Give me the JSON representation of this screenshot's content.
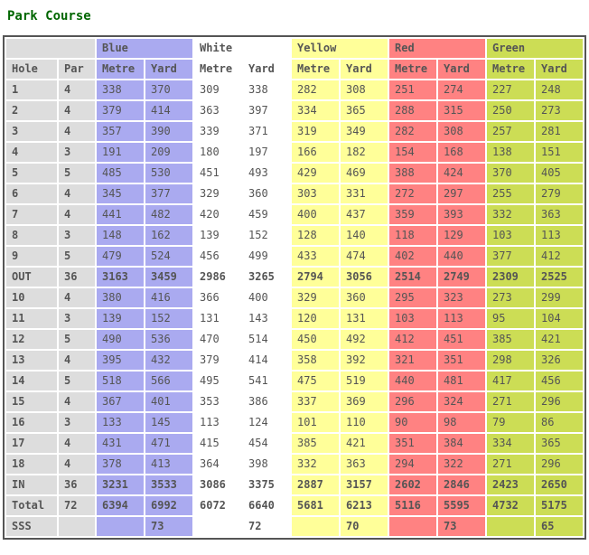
{
  "title": "Park Course",
  "colors": {
    "blue": "#AAAAF0",
    "white": "#FFFFFF",
    "yellow": "#FFFF99",
    "red": "#FF8282",
    "green": "#CCDD55",
    "gray": "#DDDDDD",
    "text": "#555555",
    "title": "#006600",
    "border": "#555555"
  },
  "table": {
    "corner_label": "",
    "col_headers": {
      "hole": "Hole",
      "par": "Par",
      "metre": "Metre",
      "yard": "Yard"
    },
    "tees": [
      {
        "key": "blue",
        "name": "Blue"
      },
      {
        "key": "white",
        "name": "White"
      },
      {
        "key": "yellow",
        "name": "Yellow"
      },
      {
        "key": "red",
        "name": "Red"
      },
      {
        "key": "green",
        "name": "Green"
      }
    ],
    "rows": [
      {
        "hole": "1",
        "par": "4",
        "bold": false,
        "values": [
          [
            338,
            370
          ],
          [
            309,
            338
          ],
          [
            282,
            308
          ],
          [
            251,
            274
          ],
          [
            227,
            248
          ]
        ]
      },
      {
        "hole": "2",
        "par": "4",
        "bold": false,
        "values": [
          [
            379,
            414
          ],
          [
            363,
            397
          ],
          [
            334,
            365
          ],
          [
            288,
            315
          ],
          [
            250,
            273
          ]
        ]
      },
      {
        "hole": "3",
        "par": "4",
        "bold": false,
        "values": [
          [
            357,
            390
          ],
          [
            339,
            371
          ],
          [
            319,
            349
          ],
          [
            282,
            308
          ],
          [
            257,
            281
          ]
        ]
      },
      {
        "hole": "4",
        "par": "3",
        "bold": false,
        "values": [
          [
            191,
            209
          ],
          [
            180,
            197
          ],
          [
            166,
            182
          ],
          [
            154,
            168
          ],
          [
            138,
            151
          ]
        ]
      },
      {
        "hole": "5",
        "par": "5",
        "bold": false,
        "values": [
          [
            485,
            530
          ],
          [
            451,
            493
          ],
          [
            429,
            469
          ],
          [
            388,
            424
          ],
          [
            370,
            405
          ]
        ]
      },
      {
        "hole": "6",
        "par": "4",
        "bold": false,
        "values": [
          [
            345,
            377
          ],
          [
            329,
            360
          ],
          [
            303,
            331
          ],
          [
            272,
            297
          ],
          [
            255,
            279
          ]
        ]
      },
      {
        "hole": "7",
        "par": "4",
        "bold": false,
        "values": [
          [
            441,
            482
          ],
          [
            420,
            459
          ],
          [
            400,
            437
          ],
          [
            359,
            393
          ],
          [
            332,
            363
          ]
        ]
      },
      {
        "hole": "8",
        "par": "3",
        "bold": false,
        "values": [
          [
            148,
            162
          ],
          [
            139,
            152
          ],
          [
            128,
            140
          ],
          [
            118,
            129
          ],
          [
            103,
            113
          ]
        ]
      },
      {
        "hole": "9",
        "par": "5",
        "bold": false,
        "values": [
          [
            479,
            524
          ],
          [
            456,
            499
          ],
          [
            433,
            474
          ],
          [
            402,
            440
          ],
          [
            377,
            412
          ]
        ]
      },
      {
        "hole": "OUT",
        "par": "36",
        "bold": true,
        "values": [
          [
            3163,
            3459
          ],
          [
            2986,
            3265
          ],
          [
            2794,
            3056
          ],
          [
            2514,
            2749
          ],
          [
            2309,
            2525
          ]
        ]
      },
      {
        "hole": "10",
        "par": "4",
        "bold": false,
        "values": [
          [
            380,
            416
          ],
          [
            366,
            400
          ],
          [
            329,
            360
          ],
          [
            295,
            323
          ],
          [
            273,
            299
          ]
        ]
      },
      {
        "hole": "11",
        "par": "3",
        "bold": false,
        "values": [
          [
            139,
            152
          ],
          [
            131,
            143
          ],
          [
            120,
            131
          ],
          [
            103,
            113
          ],
          [
            95,
            104
          ]
        ]
      },
      {
        "hole": "12",
        "par": "5",
        "bold": false,
        "values": [
          [
            490,
            536
          ],
          [
            470,
            514
          ],
          [
            450,
            492
          ],
          [
            412,
            451
          ],
          [
            385,
            421
          ]
        ]
      },
      {
        "hole": "13",
        "par": "4",
        "bold": false,
        "values": [
          [
            395,
            432
          ],
          [
            379,
            414
          ],
          [
            358,
            392
          ],
          [
            321,
            351
          ],
          [
            298,
            326
          ]
        ]
      },
      {
        "hole": "14",
        "par": "5",
        "bold": false,
        "values": [
          [
            518,
            566
          ],
          [
            495,
            541
          ],
          [
            475,
            519
          ],
          [
            440,
            481
          ],
          [
            417,
            456
          ]
        ]
      },
      {
        "hole": "15",
        "par": "4",
        "bold": false,
        "values": [
          [
            367,
            401
          ],
          [
            353,
            386
          ],
          [
            337,
            369
          ],
          [
            296,
            324
          ],
          [
            271,
            296
          ]
        ]
      },
      {
        "hole": "16",
        "par": "3",
        "bold": false,
        "values": [
          [
            133,
            145
          ],
          [
            113,
            124
          ],
          [
            101,
            110
          ],
          [
            90,
            98
          ],
          [
            79,
            86
          ]
        ]
      },
      {
        "hole": "17",
        "par": "4",
        "bold": false,
        "values": [
          [
            431,
            471
          ],
          [
            415,
            454
          ],
          [
            385,
            421
          ],
          [
            351,
            384
          ],
          [
            334,
            365
          ]
        ]
      },
      {
        "hole": "18",
        "par": "4",
        "bold": false,
        "values": [
          [
            378,
            413
          ],
          [
            364,
            398
          ],
          [
            332,
            363
          ],
          [
            294,
            322
          ],
          [
            271,
            296
          ]
        ]
      },
      {
        "hole": "IN",
        "par": "36",
        "bold": true,
        "values": [
          [
            3231,
            3533
          ],
          [
            3086,
            3375
          ],
          [
            2887,
            3157
          ],
          [
            2602,
            2846
          ],
          [
            2423,
            2650
          ]
        ]
      },
      {
        "hole": "Total",
        "par": "72",
        "bold": true,
        "values": [
          [
            6394,
            6992
          ],
          [
            6072,
            6640
          ],
          [
            5681,
            6213
          ],
          [
            5116,
            5595
          ],
          [
            4732,
            5175
          ]
        ]
      },
      {
        "hole": "SSS",
        "par": "",
        "bold": true,
        "values": [
          [
            "",
            73
          ],
          [
            "",
            72
          ],
          [
            "",
            70
          ],
          [
            "",
            73
          ],
          [
            "",
            65
          ]
        ]
      }
    ]
  }
}
